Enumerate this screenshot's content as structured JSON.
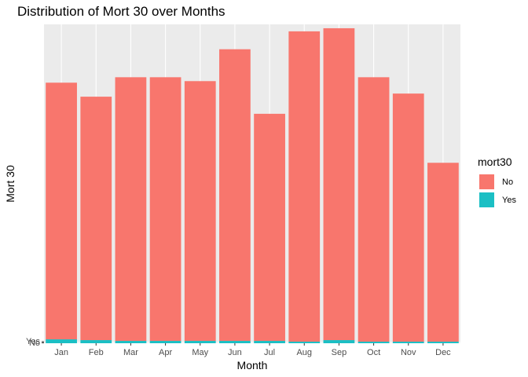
{
  "chart_data": {
    "type": "bar",
    "stacked": true,
    "title": "Distribution of Mort 30 over Months",
    "xlabel": "Month",
    "ylabel": "Mort 30",
    "categories": [
      "Jan",
      "Feb",
      "Mar",
      "Apr",
      "May",
      "Jun",
      "Jul",
      "Aug",
      "Sep",
      "Oct",
      "Nov",
      "Dec"
    ],
    "y_tick_labels": [
      "No",
      "Yes"
    ],
    "series": [
      {
        "name": "Yes",
        "color": "#1BBFC4",
        "values": [
          5,
          4,
          3,
          3,
          3,
          3,
          3,
          2,
          4,
          2,
          2,
          2
        ]
      },
      {
        "name": "No",
        "color": "#F8766D",
        "values": [
          330,
          313,
          339,
          339,
          334,
          375,
          292,
          399,
          401,
          340,
          319,
          230
        ]
      }
    ],
    "ylim": [
      0,
      410
    ],
    "grid": true,
    "panel_background": "#EBEBEB",
    "legend": {
      "title": "mort30",
      "position": "right",
      "entries": [
        "No",
        "Yes"
      ]
    }
  }
}
